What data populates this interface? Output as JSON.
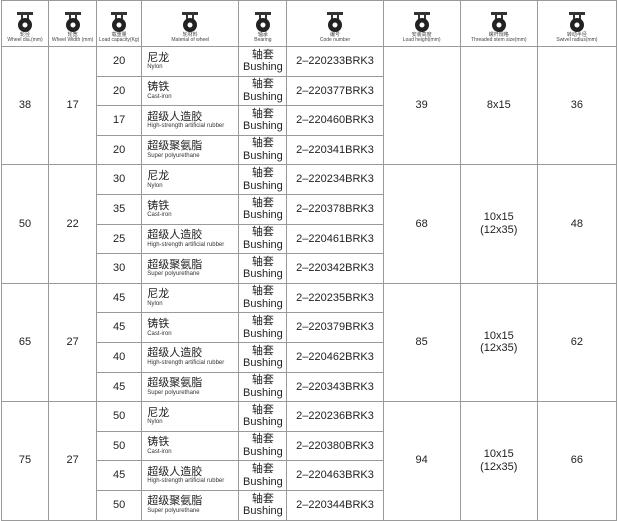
{
  "header": [
    {
      "cn": "轮径",
      "en": "Wheel dia.(mm)"
    },
    {
      "cn": "轮宽",
      "en": "Wheel Width (mm)"
    },
    {
      "cn": "载重量",
      "en": "Load capacity(Kg)"
    },
    {
      "cn": "轮材料",
      "en": "Material of wheel"
    },
    {
      "cn": "轴承",
      "en": "Bearing"
    },
    {
      "cn": "编号",
      "en": "Code number"
    },
    {
      "cn": "安装高度",
      "en": "Load height(mm)"
    },
    {
      "cn": "螺杆规格",
      "en": "Threaded stem size(mm)"
    },
    {
      "cn": "转动半径",
      "en": "Swivel radius(mm)"
    }
  ],
  "groups": [
    {
      "diameter": 38,
      "width": 17,
      "height": 39,
      "stem": [
        "8x15"
      ],
      "radius": 36,
      "rows": [
        {
          "load": 20,
          "material_cn": "尼龙",
          "material_en": "Nylon",
          "bearing_cn": "轴套",
          "bearing_en": "Bushing",
          "code": "2–220233BRK3"
        },
        {
          "load": 20,
          "material_cn": "铸铁",
          "material_en": "Cast-iron",
          "bearing_cn": "轴套",
          "bearing_en": "Bushing",
          "code": "2–220377BRK3"
        },
        {
          "load": 17,
          "material_cn": "超级人造胶",
          "material_en": "High-strength artificial rubber",
          "bearing_cn": "轴套",
          "bearing_en": "Bushing",
          "code": "2–220460BRK3"
        },
        {
          "load": 20,
          "material_cn": "超级聚氨脂",
          "material_en": "Super polyurethane",
          "bearing_cn": "轴套",
          "bearing_en": "Bushing",
          "code": "2–220341BRK3"
        }
      ]
    },
    {
      "diameter": 50,
      "width": 22,
      "height": 68,
      "stem": [
        "10x15",
        "(12x35)"
      ],
      "radius": 48,
      "rows": [
        {
          "load": 30,
          "material_cn": "尼龙",
          "material_en": "Nylon",
          "bearing_cn": "轴套",
          "bearing_en": "Bushing",
          "code": "2–220234BRK3"
        },
        {
          "load": 35,
          "material_cn": "铸铁",
          "material_en": "Cast-iron",
          "bearing_cn": "轴套",
          "bearing_en": "Bushing",
          "code": "2–220378BRK3"
        },
        {
          "load": 25,
          "material_cn": "超级人造胶",
          "material_en": "High-strength artificial rubber",
          "bearing_cn": "轴套",
          "bearing_en": "Bushing",
          "code": "2–220461BRK3"
        },
        {
          "load": 30,
          "material_cn": "超级聚氨脂",
          "material_en": "Super polyurethane",
          "bearing_cn": "轴套",
          "bearing_en": "Bushing",
          "code": "2–220342BRK3"
        }
      ]
    },
    {
      "diameter": 65,
      "width": 27,
      "height": 85,
      "stem": [
        "10x15",
        "(12x35)"
      ],
      "radius": 62,
      "rows": [
        {
          "load": 45,
          "material_cn": "尼龙",
          "material_en": "Nylon",
          "bearing_cn": "轴套",
          "bearing_en": "Bushing",
          "code": "2–220235BRK3"
        },
        {
          "load": 45,
          "material_cn": "铸铁",
          "material_en": "Cast-iron",
          "bearing_cn": "轴套",
          "bearing_en": "Bushing",
          "code": "2–220379BRK3"
        },
        {
          "load": 40,
          "material_cn": "超级人造胶",
          "material_en": "High-strength artificial rubber",
          "bearing_cn": "轴套",
          "bearing_en": "Bushing",
          "code": "2–220462BRK3"
        },
        {
          "load": 45,
          "material_cn": "超级聚氨脂",
          "material_en": "Super polyurethane",
          "bearing_cn": "轴套",
          "bearing_en": "Bushing",
          "code": "2–220343BRK3"
        }
      ]
    },
    {
      "diameter": 75,
      "width": 27,
      "height": 94,
      "stem": [
        "10x15",
        "(12x35)"
      ],
      "radius": 66,
      "rows": [
        {
          "load": 50,
          "material_cn": "尼龙",
          "material_en": "Nylon",
          "bearing_cn": "轴套",
          "bearing_en": "Bushing",
          "code": "2–220236BRK3"
        },
        {
          "load": 50,
          "material_cn": "铸铁",
          "material_en": "Cast-iron",
          "bearing_cn": "轴套",
          "bearing_en": "Bushing",
          "code": "2–220380BRK3"
        },
        {
          "load": 45,
          "material_cn": "超级人造胶",
          "material_en": "High-strength artificial rubber",
          "bearing_cn": "轴套",
          "bearing_en": "Bushing",
          "code": "2–220463BRK3"
        },
        {
          "load": 50,
          "material_cn": "超级聚氨脂",
          "material_en": "Super polyurethane",
          "bearing_cn": "轴套",
          "bearing_en": "Bushing",
          "code": "2–220344BRK3"
        }
      ]
    }
  ]
}
